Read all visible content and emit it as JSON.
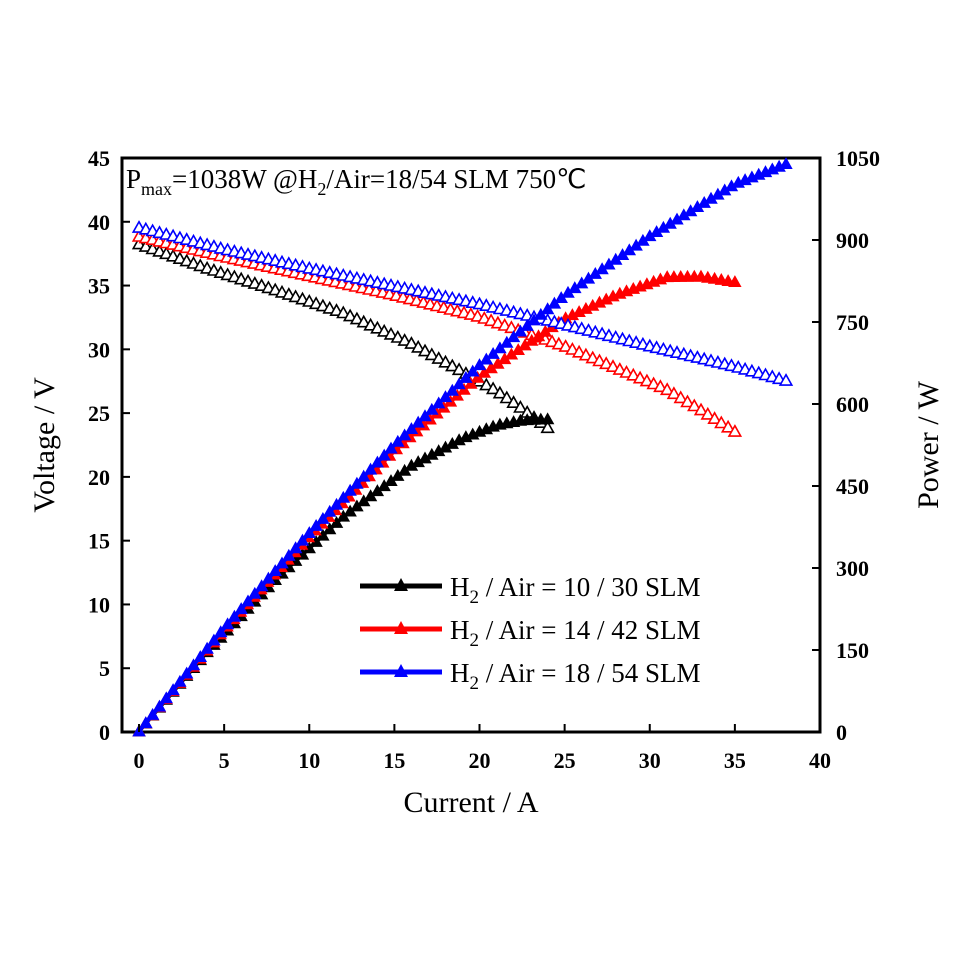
{
  "chart_data": {
    "type": "line",
    "title": "",
    "annotation": {
      "prefix": "P",
      "prefix_sub": "max",
      "power_text": "=1038W  @H",
      "h_sub": "2",
      "rest_text": "/Air=18/54 SLM   750℃"
    },
    "xlabel": "Current / A",
    "ylabel": "Voltage / V",
    "y2label": "Power / W",
    "xlim": [
      -1,
      40
    ],
    "ylim": [
      0,
      45
    ],
    "y2lim": [
      0,
      1050
    ],
    "xticks": [
      "0",
      "5",
      "10",
      "15",
      "20",
      "25",
      "30",
      "35",
      "40"
    ],
    "yticks": [
      "0",
      "5",
      "10",
      "15",
      "20",
      "25",
      "30",
      "35",
      "40",
      "45"
    ],
    "y2ticks": [
      "0",
      "150",
      "300",
      "450",
      "600",
      "750",
      "900",
      "1050"
    ],
    "legend_position": "bottom-right",
    "series": [
      {
        "name": "10/30",
        "legend": {
          "pre": "H",
          "sub": "2",
          "post": " / Air = 10 / 30  SLM"
        },
        "color": "#000000",
        "i_max": 24,
        "voltage": [
          [
            0,
            38.2
          ],
          [
            4,
            36.3
          ],
          [
            8,
            34.6
          ],
          [
            12,
            32.8
          ],
          [
            16,
            30.4
          ],
          [
            19,
            28.2
          ],
          [
            21,
            26.7
          ],
          [
            22.5,
            25.3
          ],
          [
            24,
            23.8
          ]
        ],
        "power": [
          [
            0,
            0
          ],
          [
            4,
            145
          ],
          [
            8,
            277
          ],
          [
            12,
            393
          ],
          [
            16,
            486
          ],
          [
            19,
            536
          ],
          [
            21,
            560
          ],
          [
            22.5,
            569
          ],
          [
            24,
            571
          ]
        ]
      },
      {
        "name": "14/42",
        "legend": {
          "pre": "H",
          "sub": "2",
          "post": " / Air = 14 / 42  SLM"
        },
        "color": "#ff0000",
        "i_max": 35,
        "voltage": [
          [
            0,
            38.8
          ],
          [
            5,
            37.2
          ],
          [
            10,
            35.7
          ],
          [
            15,
            34.2
          ],
          [
            20,
            32.5
          ],
          [
            25,
            30.2
          ],
          [
            28,
            28.5
          ],
          [
            31,
            26.8
          ],
          [
            33,
            25.2
          ],
          [
            35,
            23.5
          ]
        ],
        "power": [
          [
            0,
            0
          ],
          [
            5,
            186
          ],
          [
            10,
            357
          ],
          [
            15,
            513
          ],
          [
            20,
            650
          ],
          [
            25,
            755
          ],
          [
            28,
            798
          ],
          [
            31,
            831
          ],
          [
            33,
            832
          ],
          [
            35,
            822
          ]
        ]
      },
      {
        "name": "18/54",
        "legend": {
          "pre": "H",
          "sub": "2",
          "post": " / Air = 18 / 54  SLM"
        },
        "color": "#0000ff",
        "i_max": 38,
        "voltage": [
          [
            0,
            39.5
          ],
          [
            5,
            37.8
          ],
          [
            10,
            36.3
          ],
          [
            15,
            34.9
          ],
          [
            20,
            33.5
          ],
          [
            25,
            31.9
          ],
          [
            30,
            30.2
          ],
          [
            35,
            28.6
          ],
          [
            38,
            27.5
          ]
        ],
        "power": [
          [
            0,
            0
          ],
          [
            5,
            189
          ],
          [
            10,
            363
          ],
          [
            15,
            524
          ],
          [
            20,
            670
          ],
          [
            25,
            798
          ],
          [
            30,
            906
          ],
          [
            35,
            1001
          ],
          [
            38,
            1038
          ]
        ]
      }
    ]
  }
}
